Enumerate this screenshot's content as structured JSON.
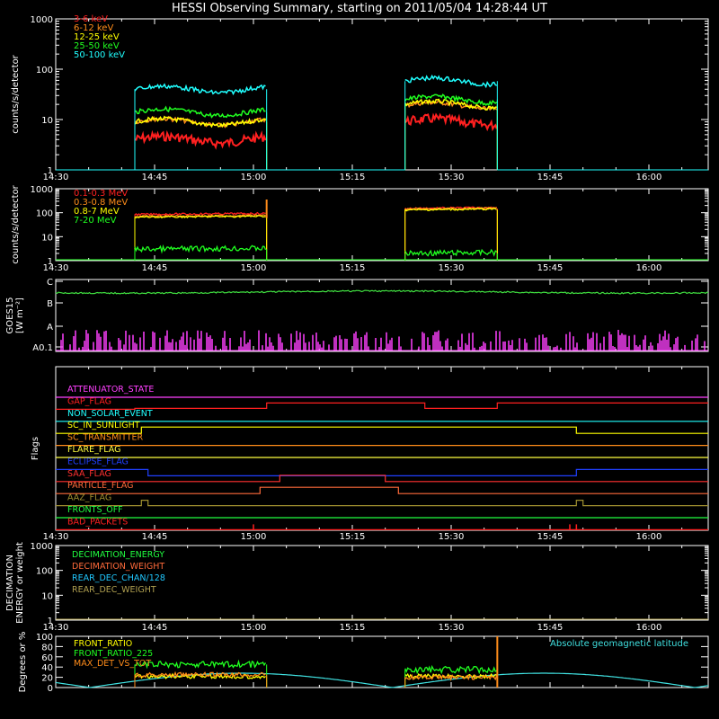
{
  "title": "HESSI Observing Summary, starting on 2011/05/04 14:28:44 UT",
  "time_axis": {
    "start": "14:30",
    "end": "16:09",
    "tick_labels": [
      "14:30",
      "14:45",
      "15:00",
      "15:15",
      "15:30",
      "15:45",
      "16:00"
    ]
  },
  "observing_windows": [
    {
      "start": "14:42",
      "end": "15:02"
    },
    {
      "start": "15:23",
      "end": "15:37"
    }
  ],
  "chart_data": [
    {
      "id": "low-energy",
      "type": "line",
      "ylabel": "counts/s/detector",
      "yscale": "log",
      "ylim": [
        1,
        1000
      ],
      "ytick_labels": [
        "1",
        "10",
        "100",
        "1000"
      ],
      "series": [
        {
          "name": "3-6 keV",
          "color": "#ff2020",
          "values": [
            4,
            9
          ]
        },
        {
          "name": "6-12 keV",
          "color": "#ff8c1a",
          "values": [
            9,
            19
          ]
        },
        {
          "name": "12-25 keV",
          "color": "#ffff00",
          "values": [
            9,
            20
          ]
        },
        {
          "name": "25-50 keV",
          "color": "#20ff20",
          "values": [
            14,
            25
          ]
        },
        {
          "name": "50-100 keV",
          "color": "#20ffff",
          "values": [
            40,
            58
          ]
        }
      ]
    },
    {
      "id": "high-energy",
      "type": "line",
      "ylabel": "counts/s/detector",
      "yscale": "log",
      "ylim": [
        1,
        1000
      ],
      "ytick_labels": [
        "1",
        "10",
        "100",
        "1000"
      ],
      "series": [
        {
          "name": "0.1-0.3 MeV",
          "color": "#ff2020",
          "values": [
            85,
            150
          ]
        },
        {
          "name": "0.3-0.8 MeV",
          "color": "#ff8c1a",
          "values": [
            70,
            140
          ]
        },
        {
          "name": "0.8-7 MeV",
          "color": "#ffff00",
          "values": [
            65,
            130
          ]
        },
        {
          "name": "7-20 MeV",
          "color": "#20ff20",
          "values": [
            3,
            2
          ]
        }
      ]
    },
    {
      "id": "goes",
      "type": "line",
      "ylabel": "GOES15",
      "ylabel2": "[W m⁻²]",
      "ytick_labels": [
        "A0.1",
        "A",
        "B",
        "C"
      ],
      "series": [
        {
          "name": "GOES long",
          "color": "#40e040",
          "level": "C"
        },
        {
          "name": "GOES short",
          "color": "#ff40ff",
          "level": "A0.1-A"
        }
      ]
    },
    {
      "id": "flags",
      "type": "line",
      "ylabel": "Flags",
      "series": [
        {
          "name": "ATTENUATOR_STATE",
          "color": "#ff40ff"
        },
        {
          "name": "GAP_FLAG",
          "color": "#ff2020"
        },
        {
          "name": "NON_SOLAR_EVENT",
          "color": "#20ffff"
        },
        {
          "name": "SC_IN_SUNLIGHT",
          "color": "#ffff00"
        },
        {
          "name": "SC_TRANSMITTER",
          "color": "#ff8c1a"
        },
        {
          "name": "FLARE_FLAG",
          "color": "#ffff40"
        },
        {
          "name": "ECLIPSE_FLAG",
          "color": "#2040ff"
        },
        {
          "name": "SAA_FLAG",
          "color": "#ff3030"
        },
        {
          "name": "PARTICLE_FLAG",
          "color": "#ff6a3a"
        },
        {
          "name": "AAZ_FLAG",
          "color": "#a09030"
        },
        {
          "name": "FRONTS_OFF",
          "color": "#20ff40"
        },
        {
          "name": "BAD_PACKETS",
          "color": "#ff2020"
        }
      ]
    },
    {
      "id": "decimation",
      "type": "line",
      "ylabel": "DECIMATION",
      "ylabel2": "ENERGY or weight",
      "yscale": "log",
      "ylim": [
        1,
        1000
      ],
      "ytick_labels": [
        "1",
        "10",
        "100",
        "1000"
      ],
      "series": [
        {
          "name": "DECIMATION_ENERGY",
          "color": "#20ff40"
        },
        {
          "name": "DECIMATION_WEIGHT",
          "color": "#ff6a3a"
        },
        {
          "name": "REAR_DEC_CHAN/128",
          "color": "#20c8ff"
        },
        {
          "name": "REAR_DEC_WEIGHT",
          "color": "#b0a050"
        }
      ]
    },
    {
      "id": "ratios",
      "type": "line",
      "ylabel": "Degrees or %",
      "ylim": [
        0,
        100
      ],
      "ytick_labels": [
        "0",
        "20",
        "40",
        "60",
        "80",
        "100"
      ],
      "series": [
        {
          "name": "FRONT_RATIO",
          "color": "#ffff00",
          "values": [
            22,
            22
          ]
        },
        {
          "name": "FRONT_RATIO_225",
          "color": "#20ff20",
          "values": [
            45,
            35
          ]
        },
        {
          "name": "MAX_DET_VS_TOT",
          "color": "#ff8c1a",
          "values": [
            25,
            20
          ]
        },
        {
          "name": "Absolute geomagnetic latitude",
          "color": "#40e0e0",
          "values": [
            0,
            30
          ]
        }
      ]
    }
  ]
}
